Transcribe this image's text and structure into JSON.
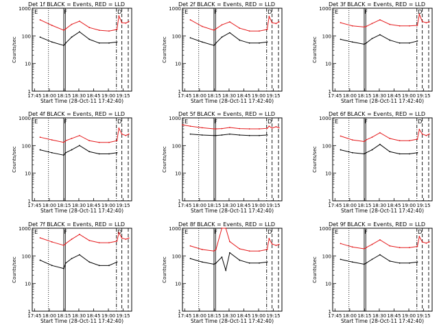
{
  "colors": {
    "events": "#000000",
    "lld": "#e41a1c",
    "frame": "#000000"
  },
  "shared": {
    "xlabel": "Start Time (28-Oct-11 17:42:40)",
    "ylabel": "Counts/sec",
    "x_ticks": [
      "17:45",
      "18:00",
      "18:15",
      "18:30",
      "18:45",
      "19:00",
      "19:15"
    ],
    "x_tick_minutes": [
      2.33,
      17.33,
      32.33,
      47.33,
      62.33,
      77.33,
      92.33
    ],
    "y_ticks": [
      "1",
      "10",
      "100",
      "1000"
    ],
    "xlim_minutes": [
      0,
      101
    ],
    "y_scale": "log",
    "ylim": [
      1,
      1000
    ],
    "markers": {
      "E_label": "E",
      "F_label": "F",
      "D_label": "D",
      "dotted_line_min": 16.5,
      "F_lines_min": [
        32.0,
        33.6
      ],
      "dashdot_line_min": 85.5,
      "dashed_lines_min": [
        91.0,
        97.5
      ]
    }
  },
  "chart_data": [
    {
      "type": "line",
      "title": "Det 1f BLACK = Events, RED = LLD",
      "xlabel": "Start Time (28-Oct-11 17:42:40)",
      "ylabel": "Counts/sec",
      "y_scale": "log",
      "ylim": [
        1,
        1000
      ],
      "x_minutes": [
        8,
        20,
        32,
        34,
        40,
        48,
        58,
        68,
        78,
        86,
        88,
        91,
        95,
        98
      ],
      "series": [
        {
          "name": "LLD",
          "color": "#e41a1c",
          "values": [
            null,
            null,
            null,
            null,
            null,
            null,
            null,
            null,
            null,
            null,
            null,
            null,
            null,
            null
          ],
          "red": [
            380,
            240,
            160,
            180,
            260,
            340,
            200,
            160,
            150,
            170,
            520,
            300,
            290,
            330
          ]
        },
        {
          "name": "Events",
          "color": "#000000",
          "values": [
            90,
            60,
            45,
            55,
            90,
            140,
            75,
            55,
            55,
            60,
            null,
            null,
            null,
            null
          ]
        }
      ]
    },
    {
      "type": "line",
      "title": "Det 2f BLACK = Events, RED = LLD",
      "xlabel": "Start Time (28-Oct-11 17:42:40)",
      "ylabel": "Counts/sec",
      "y_scale": "log",
      "ylim": [
        1,
        1000
      ],
      "x_minutes": [
        8,
        20,
        32,
        34,
        40,
        48,
        58,
        68,
        78,
        86,
        88,
        91,
        95,
        98
      ],
      "series": [
        {
          "name": "LLD",
          "color": "#e41a1c",
          "values": [
            380,
            220,
            160,
            180,
            250,
            320,
            190,
            150,
            150,
            170,
            500,
            300,
            280,
            320
          ]
        },
        {
          "name": "Events",
          "color": "#000000",
          "values": [
            85,
            60,
            45,
            55,
            90,
            130,
            70,
            55,
            55,
            60,
            null,
            null,
            null,
            null
          ]
        }
      ]
    },
    {
      "type": "line",
      "title": "Det 3f BLACK = Events, RED = LLD",
      "xlabel": "Start Time (28-Oct-11 17:42:40)",
      "ylabel": "Counts/sec",
      "y_scale": "log",
      "ylim": [
        1,
        1000
      ],
      "x_minutes": [
        8,
        20,
        32,
        34,
        40,
        48,
        58,
        68,
        78,
        86,
        88,
        91,
        95,
        98
      ],
      "series": [
        {
          "name": "LLD",
          "color": "#e41a1c",
          "values": [
            300,
            230,
            210,
            220,
            280,
            380,
            260,
            230,
            230,
            240,
            600,
            330,
            300,
            320
          ]
        },
        {
          "name": "Events",
          "color": "#000000",
          "values": [
            75,
            60,
            50,
            55,
            80,
            110,
            70,
            55,
            55,
            65,
            null,
            null,
            null,
            null
          ]
        }
      ]
    },
    {
      "type": "line",
      "title": "Det 4f BLACK = Events, RED = LLD",
      "xlabel": "Start Time (28-Oct-11 17:42:40)",
      "ylabel": "Counts/sec",
      "y_scale": "log",
      "ylim": [
        1,
        1000
      ],
      "x_minutes": [
        8,
        20,
        32,
        34,
        40,
        48,
        58,
        68,
        78,
        86,
        88,
        91,
        95,
        98
      ],
      "series": [
        {
          "name": "LLD",
          "color": "#e41a1c",
          "values": [
            200,
            160,
            130,
            150,
            180,
            230,
            150,
            130,
            130,
            150,
            420,
            260,
            230,
            260
          ]
        },
        {
          "name": "Events",
          "color": "#000000",
          "values": [
            70,
            55,
            45,
            55,
            70,
            100,
            60,
            50,
            50,
            55,
            null,
            null,
            null,
            null
          ]
        }
      ]
    },
    {
      "type": "line",
      "title": "Det 5f BLACK = Events, RED = LLD",
      "xlabel": "Start Time (28-Oct-11 17:42:40)",
      "ylabel": "Counts/sec",
      "y_scale": "log",
      "ylim": [
        1,
        1000
      ],
      "x_minutes": [
        0,
        8,
        20,
        32,
        34,
        40,
        48,
        58,
        68,
        78,
        86,
        88,
        91,
        95,
        98
      ],
      "series": [
        {
          "name": "LLD",
          "color": "#e41a1c",
          "values": [
            560,
            500,
            440,
            400,
            400,
            410,
            450,
            410,
            400,
            400,
            420,
            500,
            430,
            480,
            440
          ]
        },
        {
          "name": "Events",
          "color": "#000000",
          "values": [
            null,
            260,
            240,
            230,
            230,
            240,
            260,
            240,
            230,
            230,
            240,
            null,
            null,
            null,
            null
          ]
        }
      ]
    },
    {
      "type": "line",
      "title": "Det 6f BLACK = Events, RED = LLD",
      "xlabel": "Start Time (28-Oct-11 17:42:40)",
      "ylabel": "Counts/sec",
      "y_scale": "log",
      "ylim": [
        1,
        1000
      ],
      "x_minutes": [
        8,
        20,
        32,
        34,
        40,
        48,
        58,
        68,
        78,
        86,
        88,
        91,
        95,
        98
      ],
      "series": [
        {
          "name": "LLD",
          "color": "#e41a1c",
          "values": [
            220,
            160,
            140,
            160,
            200,
            290,
            180,
            150,
            150,
            170,
            380,
            260,
            230,
            260
          ]
        },
        {
          "name": "Events",
          "color": "#000000",
          "values": [
            70,
            55,
            50,
            55,
            70,
            110,
            60,
            50,
            50,
            55,
            null,
            null,
            null,
            null
          ]
        }
      ]
    },
    {
      "type": "line",
      "title": "Det 7f BLACK = Events, RED = LLD",
      "xlabel": "Start Time (28-Oct-11 17:42:40)",
      "ylabel": "Counts/sec",
      "y_scale": "log",
      "ylim": [
        1,
        1000
      ],
      "x_minutes": [
        8,
        20,
        32,
        34,
        40,
        48,
        58,
        68,
        78,
        86,
        88,
        91,
        95,
        98
      ],
      "series": [
        {
          "name": "LLD",
          "color": "#e41a1c",
          "values": [
            450,
            320,
            240,
            280,
            400,
            600,
            360,
            300,
            300,
            340,
            700,
            440,
            400,
            440
          ]
        },
        {
          "name": "Events",
          "color": "#000000",
          "values": [
            70,
            45,
            35,
            55,
            80,
            110,
            60,
            45,
            45,
            60,
            null,
            null,
            null,
            null
          ]
        }
      ]
    },
    {
      "type": "line",
      "title": "Det 8f BLACK = Events, RED = LLD",
      "xlabel": "Start Time (28-Oct-11 17:42:40)",
      "ylabel": "Counts/sec",
      "y_scale": "log",
      "ylim": [
        1,
        1000
      ],
      "x_minutes": [
        8,
        20,
        32,
        34,
        40,
        44,
        48,
        58,
        68,
        78,
        86,
        88,
        91,
        95,
        98
      ],
      "series": [
        {
          "name": "LLD",
          "color": "#e41a1c",
          "values": [
            230,
            170,
            150,
            170,
            1000,
            1000,
            330,
            180,
            150,
            150,
            170,
            420,
            270,
            240,
            260
          ]
        },
        {
          "name": "Events",
          "color": "#000000",
          "values": [
            80,
            60,
            50,
            55,
            90,
            30,
            130,
            70,
            55,
            55,
            60,
            null,
            null,
            null,
            null
          ]
        }
      ]
    },
    {
      "type": "line",
      "title": "Det 9f BLACK = Events, RED = LLD",
      "xlabel": "Start Time (28-Oct-11 17:42:40)",
      "ylabel": "Counts/sec",
      "y_scale": "log",
      "ylim": [
        1,
        1000
      ],
      "x_minutes": [
        8,
        20,
        32,
        34,
        40,
        48,
        58,
        68,
        78,
        86,
        88,
        91,
        95,
        98
      ],
      "series": [
        {
          "name": "LLD",
          "color": "#e41a1c",
          "values": [
            280,
            210,
            180,
            200,
            260,
            380,
            230,
            200,
            200,
            220,
            500,
            320,
            290,
            320
          ]
        },
        {
          "name": "Events",
          "color": "#000000",
          "values": [
            75,
            60,
            50,
            55,
            75,
            110,
            65,
            55,
            55,
            60,
            null,
            null,
            null,
            null
          ]
        }
      ]
    }
  ]
}
